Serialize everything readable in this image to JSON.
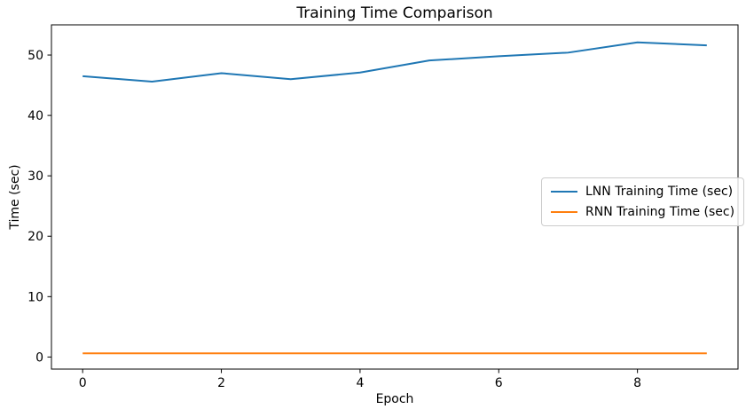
{
  "chart_data": {
    "type": "line",
    "title": "Training Time Comparison",
    "xlabel": "Epoch",
    "ylabel": "Time (sec)",
    "x": [
      0,
      1,
      2,
      3,
      4,
      5,
      6,
      7,
      8,
      9
    ],
    "series": [
      {
        "name": "LNN Training Time (sec)",
        "color": "#1f77b4",
        "values": [
          46.5,
          45.6,
          47.0,
          46.0,
          47.1,
          49.1,
          49.8,
          50.4,
          52.1,
          51.6
        ]
      },
      {
        "name": "RNN Training Time (sec)",
        "color": "#ff7f0e",
        "values": [
          0.6,
          0.6,
          0.6,
          0.6,
          0.6,
          0.6,
          0.6,
          0.6,
          0.6,
          0.6
        ]
      }
    ],
    "xticks": [
      0,
      2,
      4,
      6,
      8
    ],
    "yticks": [
      0,
      10,
      20,
      30,
      40,
      50
    ],
    "xlim": [
      -0.45,
      9.45
    ],
    "ylim": [
      -2,
      55
    ],
    "grid": false,
    "legend_position": "center-right",
    "axis_color": "#000000",
    "background_color": "#ffffff"
  }
}
